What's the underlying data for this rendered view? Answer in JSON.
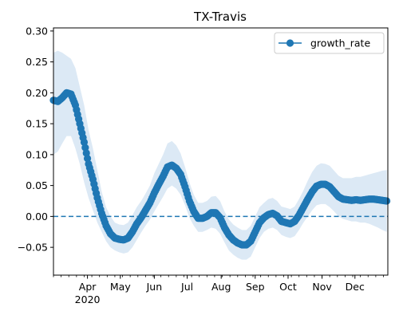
{
  "chart_data": {
    "type": "line",
    "title": "TX-Travis",
    "xlabel": "",
    "ylabel": "",
    "ylim": [
      -0.095,
      0.305
    ],
    "xlim": [
      "2020-03-01",
      "2020-12-31"
    ],
    "y_ticks": [
      "0.30",
      "0.25",
      "0.20",
      "0.15",
      "0.10",
      "0.05",
      "0.00",
      "−0.05"
    ],
    "y_tick_values": [
      0.3,
      0.25,
      0.2,
      0.15,
      0.1,
      0.05,
      0.0,
      -0.05
    ],
    "x_ticks": [
      {
        "date": "2020-04-01",
        "label": "Apr",
        "sublabel": "2020"
      },
      {
        "date": "2020-05-01",
        "label": "May",
        "sublabel": ""
      },
      {
        "date": "2020-06-01",
        "label": "Jun",
        "sublabel": ""
      },
      {
        "date": "2020-07-01",
        "label": "Jul",
        "sublabel": ""
      },
      {
        "date": "2020-08-01",
        "label": "Aug",
        "sublabel": ""
      },
      {
        "date": "2020-09-01",
        "label": "Sep",
        "sublabel": ""
      },
      {
        "date": "2020-10-01",
        "label": "Oct",
        "sublabel": ""
      },
      {
        "date": "2020-11-01",
        "label": "Nov",
        "sublabel": ""
      },
      {
        "date": "2020-12-01",
        "label": "Dec",
        "sublabel": ""
      }
    ],
    "reference_line": {
      "y": 0.0,
      "style": "dashed",
      "color": "#1f77b4"
    },
    "legend": {
      "position": "top-right",
      "entries": [
        "growth_rate"
      ]
    },
    "colors": {
      "line": "#1f77b4",
      "band": "#dce9f5"
    },
    "series": [
      {
        "name": "growth_rate",
        "x": [
          "2020-03-01",
          "2020-03-05",
          "2020-03-09",
          "2020-03-13",
          "2020-03-17",
          "2020-03-21",
          "2020-03-25",
          "2020-03-29",
          "2020-04-02",
          "2020-04-06",
          "2020-04-10",
          "2020-04-14",
          "2020-04-18",
          "2020-04-22",
          "2020-04-26",
          "2020-04-30",
          "2020-05-04",
          "2020-05-08",
          "2020-05-12",
          "2020-05-16",
          "2020-05-20",
          "2020-05-24",
          "2020-05-28",
          "2020-06-01",
          "2020-06-05",
          "2020-06-09",
          "2020-06-13",
          "2020-06-17",
          "2020-06-21",
          "2020-06-25",
          "2020-06-29",
          "2020-07-03",
          "2020-07-07",
          "2020-07-11",
          "2020-07-15",
          "2020-07-19",
          "2020-07-23",
          "2020-07-27",
          "2020-07-31",
          "2020-08-04",
          "2020-08-08",
          "2020-08-12",
          "2020-08-16",
          "2020-08-20",
          "2020-08-24",
          "2020-08-28",
          "2020-09-01",
          "2020-09-05",
          "2020-09-09",
          "2020-09-13",
          "2020-09-17",
          "2020-09-21",
          "2020-09-25",
          "2020-09-29",
          "2020-10-03",
          "2020-10-07",
          "2020-10-11",
          "2020-10-15",
          "2020-10-19",
          "2020-10-23",
          "2020-10-27",
          "2020-10-31",
          "2020-11-04",
          "2020-11-08",
          "2020-11-12",
          "2020-11-16",
          "2020-11-20",
          "2020-11-24",
          "2020-11-28",
          "2020-12-02",
          "2020-12-06",
          "2020-12-10",
          "2020-12-14",
          "2020-12-18",
          "2020-12-22",
          "2020-12-26",
          "2020-12-30"
        ],
        "y": [
          0.188,
          0.186,
          0.192,
          0.2,
          0.198,
          0.18,
          0.15,
          0.12,
          0.085,
          0.06,
          0.03,
          0.005,
          -0.015,
          -0.028,
          -0.035,
          -0.037,
          -0.038,
          -0.035,
          -0.025,
          -0.012,
          -0.002,
          0.01,
          0.022,
          0.038,
          0.052,
          0.065,
          0.08,
          0.083,
          0.078,
          0.068,
          0.048,
          0.025,
          0.008,
          -0.003,
          -0.003,
          0.0,
          0.006,
          0.006,
          -0.002,
          -0.018,
          -0.03,
          -0.038,
          -0.043,
          -0.046,
          -0.046,
          -0.04,
          -0.025,
          -0.01,
          -0.002,
          0.003,
          0.005,
          0.001,
          -0.008,
          -0.01,
          -0.012,
          -0.008,
          0.002,
          0.015,
          0.028,
          0.04,
          0.049,
          0.052,
          0.052,
          0.048,
          0.04,
          0.032,
          0.028,
          0.027,
          0.026,
          0.027,
          0.026,
          0.027,
          0.028,
          0.028,
          0.027,
          0.026,
          0.025
        ],
        "lower": [
          0.1,
          0.105,
          0.118,
          0.13,
          0.13,
          0.11,
          0.085,
          0.055,
          0.03,
          0.01,
          -0.01,
          -0.025,
          -0.04,
          -0.05,
          -0.055,
          -0.058,
          -0.06,
          -0.058,
          -0.05,
          -0.038,
          -0.026,
          -0.015,
          -0.005,
          0.008,
          0.02,
          0.032,
          0.045,
          0.05,
          0.045,
          0.035,
          0.018,
          -0.002,
          -0.015,
          -0.025,
          -0.025,
          -0.022,
          -0.018,
          -0.02,
          -0.028,
          -0.042,
          -0.055,
          -0.062,
          -0.067,
          -0.07,
          -0.07,
          -0.065,
          -0.05,
          -0.035,
          -0.025,
          -0.02,
          -0.018,
          -0.022,
          -0.03,
          -0.033,
          -0.035,
          -0.032,
          -0.022,
          -0.01,
          0.0,
          0.01,
          0.018,
          0.02,
          0.02,
          0.015,
          0.008,
          0.0,
          -0.004,
          -0.006,
          -0.008,
          -0.008,
          -0.01,
          -0.01,
          -0.012,
          -0.015,
          -0.018,
          -0.022,
          -0.025
        ],
        "upper": [
          0.265,
          0.268,
          0.265,
          0.26,
          0.255,
          0.24,
          0.21,
          0.18,
          0.14,
          0.11,
          0.075,
          0.04,
          0.015,
          0.0,
          -0.01,
          -0.013,
          -0.014,
          -0.01,
          0.002,
          0.015,
          0.025,
          0.037,
          0.05,
          0.07,
          0.085,
          0.1,
          0.118,
          0.122,
          0.115,
          0.102,
          0.08,
          0.055,
          0.035,
          0.022,
          0.022,
          0.025,
          0.032,
          0.033,
          0.025,
          0.008,
          -0.005,
          -0.013,
          -0.018,
          -0.022,
          -0.022,
          -0.015,
          0.0,
          0.015,
          0.022,
          0.028,
          0.03,
          0.025,
          0.016,
          0.014,
          0.012,
          0.016,
          0.028,
          0.042,
          0.058,
          0.072,
          0.082,
          0.086,
          0.085,
          0.082,
          0.074,
          0.066,
          0.062,
          0.062,
          0.062,
          0.064,
          0.064,
          0.066,
          0.068,
          0.07,
          0.072,
          0.074,
          0.075
        ]
      }
    ]
  }
}
